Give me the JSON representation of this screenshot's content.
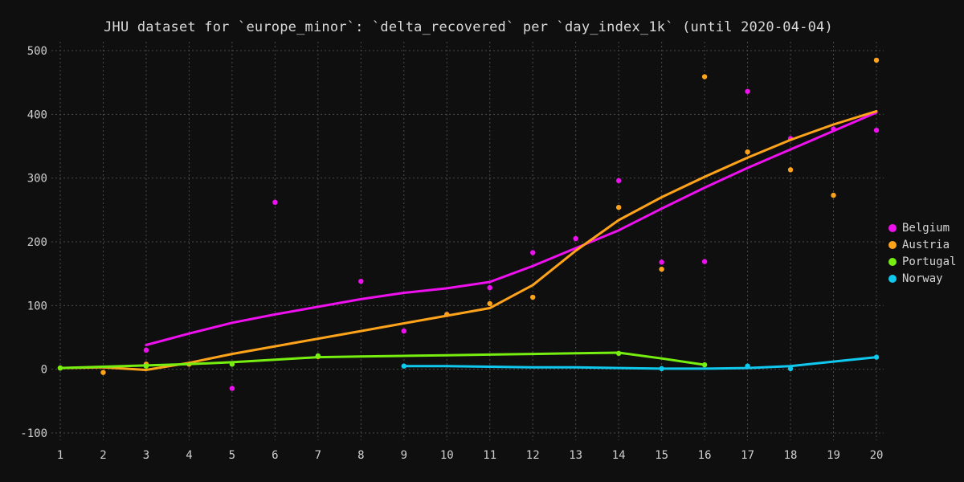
{
  "title": "JHU dataset for `europe_minor`: `delta_recovered` per `day_index_1k` (until 2020-04-04)",
  "colors": {
    "background": "#0f0f0f",
    "grid": "#4a4a4a",
    "axis_text": "#cfcfcf"
  },
  "chart_data": {
    "type": "scatter",
    "title": "JHU dataset for `europe_minor`: `delta_recovered` per `day_index_1k` (until 2020-04-04)",
    "xlabel": "",
    "ylabel": "",
    "xlim": [
      1,
      20
    ],
    "ylim": [
      -100,
      500
    ],
    "xticks": [
      1,
      2,
      3,
      4,
      5,
      6,
      7,
      8,
      9,
      10,
      11,
      12,
      13,
      14,
      15,
      16,
      17,
      18,
      19,
      20
    ],
    "yticks": [
      -100,
      0,
      100,
      200,
      300,
      400,
      500
    ],
    "grid": true,
    "legend_position": "right",
    "series": [
      {
        "name": "Belgium",
        "color": "#ee10ee",
        "points": [
          [
            3,
            30
          ],
          [
            5,
            -30
          ],
          [
            6,
            262
          ],
          [
            8,
            138
          ],
          [
            9,
            60
          ],
          [
            10,
            86
          ],
          [
            11,
            128
          ],
          [
            12,
            183
          ],
          [
            13,
            205
          ],
          [
            14,
            296
          ],
          [
            15,
            168
          ],
          [
            16,
            169
          ],
          [
            17,
            436
          ],
          [
            18,
            362
          ],
          [
            19,
            377
          ],
          [
            20,
            375
          ]
        ],
        "trend": [
          [
            3,
            38
          ],
          [
            4,
            56
          ],
          [
            5,
            73
          ],
          [
            6,
            86
          ],
          [
            7,
            98
          ],
          [
            8,
            110
          ],
          [
            9,
            120
          ],
          [
            10,
            127
          ],
          [
            11,
            137
          ],
          [
            12,
            162
          ],
          [
            13,
            190
          ],
          [
            14,
            218
          ],
          [
            15,
            252
          ],
          [
            16,
            285
          ],
          [
            17,
            316
          ],
          [
            18,
            345
          ],
          [
            19,
            374
          ],
          [
            20,
            403
          ]
        ]
      },
      {
        "name": "Austria",
        "color": "#ffa31a",
        "points": [
          [
            1,
            2
          ],
          [
            2,
            -5
          ],
          [
            3,
            8
          ],
          [
            4,
            8
          ],
          [
            7,
            20
          ],
          [
            10,
            86
          ],
          [
            11,
            103
          ],
          [
            12,
            113
          ],
          [
            14,
            254
          ],
          [
            15,
            157
          ],
          [
            16,
            459
          ],
          [
            17,
            341
          ],
          [
            18,
            313
          ],
          [
            19,
            273
          ],
          [
            20,
            485
          ]
        ],
        "trend": [
          [
            1,
            2
          ],
          [
            2,
            3
          ],
          [
            3,
            -1
          ],
          [
            4,
            10
          ],
          [
            5,
            24
          ],
          [
            6,
            36
          ],
          [
            7,
            48
          ],
          [
            8,
            60
          ],
          [
            9,
            72
          ],
          [
            10,
            84
          ],
          [
            11,
            96
          ],
          [
            12,
            132
          ],
          [
            13,
            186
          ],
          [
            14,
            234
          ],
          [
            15,
            270
          ],
          [
            16,
            302
          ],
          [
            17,
            332
          ],
          [
            18,
            360
          ],
          [
            19,
            384
          ],
          [
            20,
            405
          ]
        ]
      },
      {
        "name": "Portugal",
        "color": "#76ee10",
        "points": [
          [
            1,
            2
          ],
          [
            3,
            5
          ],
          [
            5,
            8
          ],
          [
            7,
            21
          ],
          [
            14,
            25
          ],
          [
            16,
            7
          ]
        ],
        "trend": [
          [
            1,
            2
          ],
          [
            2,
            4
          ],
          [
            3,
            6
          ],
          [
            4,
            8
          ],
          [
            5,
            11
          ],
          [
            6,
            15
          ],
          [
            7,
            19
          ],
          [
            8,
            20
          ],
          [
            9,
            21
          ],
          [
            10,
            22
          ],
          [
            11,
            23
          ],
          [
            12,
            24
          ],
          [
            13,
            25
          ],
          [
            14,
            26
          ],
          [
            15,
            17
          ],
          [
            16,
            7
          ]
        ]
      },
      {
        "name": "Norway",
        "color": "#10c8ee",
        "points": [
          [
            9,
            5
          ],
          [
            15,
            1
          ],
          [
            17,
            5
          ],
          [
            18,
            1
          ],
          [
            20,
            19
          ]
        ],
        "trend": [
          [
            9,
            5
          ],
          [
            10,
            5
          ],
          [
            11,
            4
          ],
          [
            12,
            3
          ],
          [
            13,
            3
          ],
          [
            14,
            2
          ],
          [
            15,
            1
          ],
          [
            16,
            1
          ],
          [
            17,
            2
          ],
          [
            18,
            5
          ],
          [
            19,
            12
          ],
          [
            20,
            19
          ]
        ]
      }
    ]
  }
}
